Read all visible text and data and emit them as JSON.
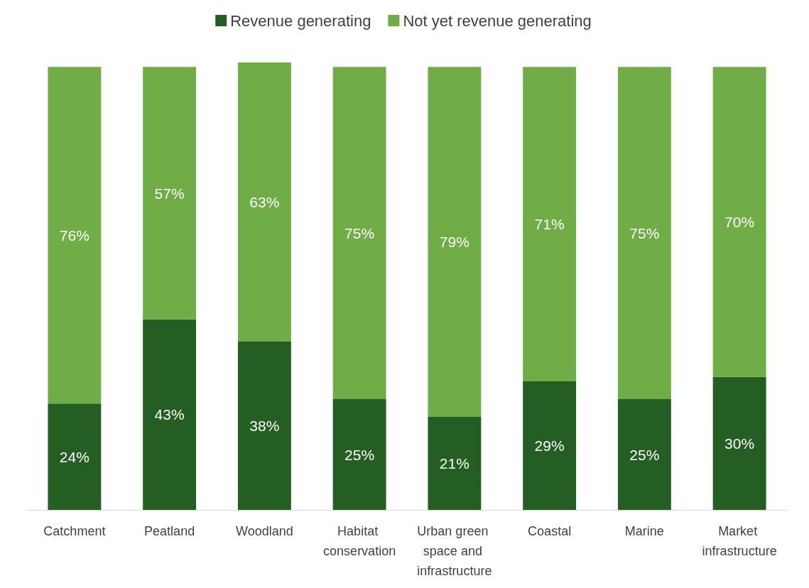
{
  "chart_data": {
    "type": "bar",
    "stacked": true,
    "tick_labels": "x",
    "legend": "top",
    "categories": [
      "Catchment",
      "Peatland",
      "Woodland",
      "Habitat conservation",
      "Urban green space and infrastructure",
      "Coastal",
      "Marine",
      "Market infrastructure"
    ],
    "series": [
      {
        "name": "Revenue generating",
        "color": "#255e23",
        "values": [
          24,
          43,
          38,
          25,
          21,
          29,
          25,
          30
        ],
        "value_labels": [
          "24%",
          "43%",
          "38%",
          "25%",
          "21%",
          "29%",
          "25%",
          "30%"
        ]
      },
      {
        "name": "Not yet revenue generating",
        "color": "#70ad47",
        "values": [
          76,
          57,
          63,
          75,
          79,
          71,
          75,
          70
        ],
        "value_labels": [
          "76%",
          "57%",
          "63%",
          "75%",
          "79%",
          "71%",
          "75%",
          "70%"
        ]
      }
    ]
  }
}
